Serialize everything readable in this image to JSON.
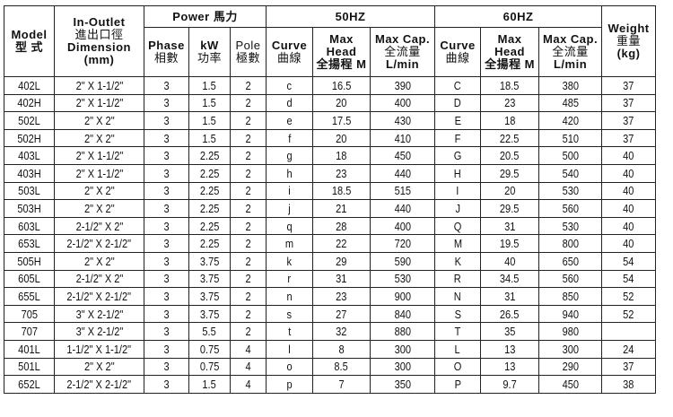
{
  "headers": {
    "model": [
      "Model",
      "型 式"
    ],
    "dimension": [
      "In-Outlet",
      "進出口徑",
      "Dimension",
      "(mm)"
    ],
    "power": "Power 馬力",
    "phase": [
      "Phase",
      "相數"
    ],
    "kw": [
      "kW",
      "功率"
    ],
    "pole": [
      "Pole",
      "極數"
    ],
    "hz50": "50HZ",
    "hz60": "60HZ",
    "curve": [
      "Curve",
      "曲線"
    ],
    "max_head": [
      "Max",
      "Head",
      "全揚程 M"
    ],
    "max_cap": [
      "Max Cap.",
      "全流量",
      "L/min"
    ],
    "weight": [
      "Weight",
      "重量",
      "(kg)"
    ]
  },
  "columns": [
    "Model",
    "Dimension",
    "Phase",
    "kW",
    "Pole",
    "Curve 50HZ",
    "Max Head 50HZ",
    "Max Cap 50HZ",
    "Curve 60HZ",
    "Max Head 60HZ",
    "Max Cap 60HZ",
    "Weight"
  ],
  "rows": [
    [
      "402L",
      "2\" X 1-1/2\"",
      "3",
      "1.5",
      "2",
      "c",
      "16.5",
      "390",
      "C",
      "18.5",
      "380",
      "37"
    ],
    [
      "402H",
      "2\" X 1-1/2\"",
      "3",
      "1.5",
      "2",
      "d",
      "20",
      "400",
      "D",
      "23",
      "485",
      "37"
    ],
    [
      "502L",
      "2\" X 2\"",
      "3",
      "1.5",
      "2",
      "e",
      "17.5",
      "430",
      "E",
      "18",
      "420",
      "37"
    ],
    [
      "502H",
      "2\" X 2\"",
      "3",
      "1.5",
      "2",
      "f",
      "20",
      "410",
      "F",
      "22.5",
      "510",
      "37"
    ],
    [
      "403L",
      "2\" X 1-1/2\"",
      "3",
      "2.25",
      "2",
      "g",
      "18",
      "450",
      "G",
      "20.5",
      "500",
      "40"
    ],
    [
      "403H",
      "2\" X 1-1/2\"",
      "3",
      "2.25",
      "2",
      "h",
      "23",
      "440",
      "H",
      "29.5",
      "540",
      "40"
    ],
    [
      "503L",
      "2\" X 2\"",
      "3",
      "2.25",
      "2",
      "i",
      "18.5",
      "515",
      "I",
      "20",
      "530",
      "40"
    ],
    [
      "503H",
      "2\" X 2\"",
      "3",
      "2.25",
      "2",
      "j",
      "21",
      "440",
      "J",
      "29.5",
      "560",
      "40"
    ],
    [
      "603L",
      "2-1/2\" X 2\"",
      "3",
      "2.25",
      "2",
      "q",
      "28",
      "400",
      "Q",
      "31",
      "530",
      "40"
    ],
    [
      "653L",
      "2-1/2\" X 2-1/2\"",
      "3",
      "2.25",
      "2",
      "m",
      "22",
      "720",
      "M",
      "19.5",
      "800",
      "40"
    ],
    [
      "505H",
      "2\" X 2\"",
      "3",
      "3.75",
      "2",
      "k",
      "29",
      "590",
      "K",
      "40",
      "650",
      "54"
    ],
    [
      "605L",
      "2-1/2\" X 2\"",
      "3",
      "3.75",
      "2",
      "r",
      "31",
      "530",
      "R",
      "34.5",
      "560",
      "54"
    ],
    [
      "655L",
      "2-1/2\" X 2-1/2\"",
      "3",
      "3.75",
      "2",
      "n",
      "23",
      "900",
      "N",
      "31",
      "850",
      "52"
    ],
    [
      "705",
      "3\" X 2-1/2\"",
      "3",
      "3.75",
      "2",
      "s",
      "27",
      "840",
      "S",
      "26.5",
      "940",
      "52"
    ],
    [
      "707",
      "3\" X 2-1/2\"",
      "3",
      "5.5",
      "2",
      "t",
      "32",
      "880",
      "T",
      "35",
      "980",
      ""
    ],
    [
      "401L",
      "1-1/2\" X 1-1/2\"",
      "3",
      "0.75",
      "4",
      "l",
      "8",
      "300",
      "L",
      "13",
      "300",
      "24"
    ],
    [
      "501L",
      "2\" X 2\"",
      "3",
      "0.75",
      "4",
      "o",
      "8.5",
      "300",
      "O",
      "13",
      "290",
      "37"
    ],
    [
      "652L",
      "2-1/2\" X 2-1/2\"",
      "3",
      "1.5",
      "4",
      "p",
      "7",
      "350",
      "P",
      "9.7",
      "450",
      "38"
    ]
  ]
}
